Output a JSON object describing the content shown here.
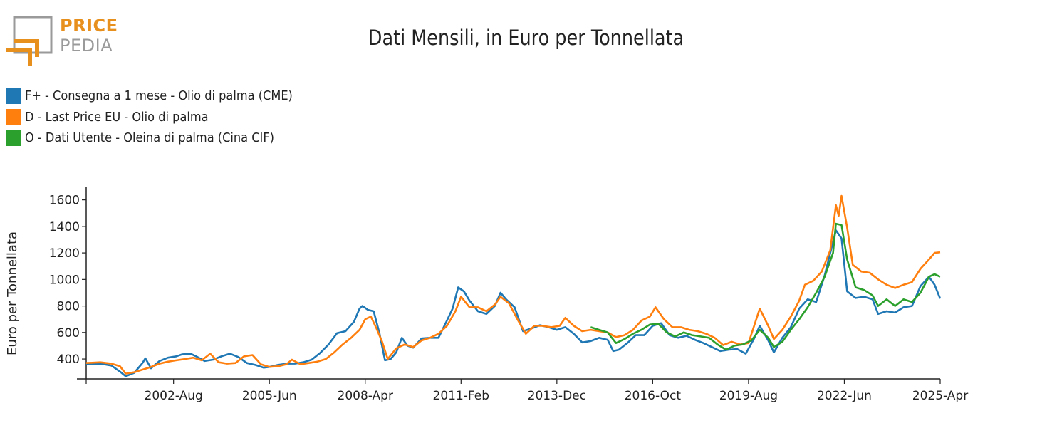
{
  "logo": {
    "line1": "PRICE",
    "line2": "PEDIA"
  },
  "colors": {
    "logo_orange": "#e8901e",
    "logo_gray": "#9a9a9a",
    "axis": "#222222"
  },
  "chart_data": {
    "type": "line",
    "title": "Dati Mensili, in Euro per Tonnellata",
    "ylabel": "Euro per Tonnellata",
    "xlabel": "",
    "x_range": [
      "2000-01",
      "2025-04"
    ],
    "ylim": [
      250,
      1700
    ],
    "yticks": [
      400,
      600,
      800,
      1000,
      1200,
      1400,
      1600
    ],
    "xticks": [
      {
        "label": "2002-Aug",
        "date": "2002-08"
      },
      {
        "label": "2005-Jun",
        "date": "2005-06"
      },
      {
        "label": "2008-Apr",
        "date": "2008-04"
      },
      {
        "label": "2011-Feb",
        "date": "2011-02"
      },
      {
        "label": "2013-Dec",
        "date": "2013-12"
      },
      {
        "label": "2016-Oct",
        "date": "2016-10"
      },
      {
        "label": "2019-Aug",
        "date": "2019-08"
      },
      {
        "label": "2022-Jun",
        "date": "2022-06"
      },
      {
        "label": "2025-Apr",
        "date": "2025-04"
      }
    ],
    "grid": false,
    "legend_position": "top-left",
    "series": [
      {
        "name": "F+ - Consegna a 1 mese - Olio di palma (CME)",
        "color": "#1f77b4",
        "points": [
          [
            "2000-01",
            360
          ],
          [
            "2000-06",
            365
          ],
          [
            "2000-10",
            350
          ],
          [
            "2001-01",
            305
          ],
          [
            "2001-03",
            270
          ],
          [
            "2001-06",
            295
          ],
          [
            "2001-09",
            370
          ],
          [
            "2001-10",
            405
          ],
          [
            "2001-12",
            330
          ],
          [
            "2002-03",
            385
          ],
          [
            "2002-06",
            410
          ],
          [
            "2002-09",
            420
          ],
          [
            "2002-11",
            435
          ],
          [
            "2003-02",
            440
          ],
          [
            "2003-04",
            420
          ],
          [
            "2003-07",
            385
          ],
          [
            "2003-10",
            395
          ],
          [
            "2004-01",
            420
          ],
          [
            "2004-04",
            440
          ],
          [
            "2004-07",
            415
          ],
          [
            "2004-10",
            370
          ],
          [
            "2005-01",
            355
          ],
          [
            "2005-04",
            335
          ],
          [
            "2005-06",
            340
          ],
          [
            "2005-09",
            355
          ],
          [
            "2005-12",
            365
          ],
          [
            "2006-03",
            365
          ],
          [
            "2006-06",
            375
          ],
          [
            "2006-09",
            395
          ],
          [
            "2006-12",
            445
          ],
          [
            "2007-03",
            510
          ],
          [
            "2007-06",
            595
          ],
          [
            "2007-09",
            610
          ],
          [
            "2007-12",
            680
          ],
          [
            "2008-02",
            780
          ],
          [
            "2008-03",
            800
          ],
          [
            "2008-05",
            770
          ],
          [
            "2008-07",
            760
          ],
          [
            "2008-09",
            600
          ],
          [
            "2008-11",
            390
          ],
          [
            "2009-01",
            400
          ],
          [
            "2009-03",
            450
          ],
          [
            "2009-05",
            560
          ],
          [
            "2009-07",
            500
          ],
          [
            "2009-09",
            485
          ],
          [
            "2009-12",
            555
          ],
          [
            "2010-03",
            560
          ],
          [
            "2010-06",
            560
          ],
          [
            "2010-09",
            690
          ],
          [
            "2010-11",
            780
          ],
          [
            "2011-01",
            940
          ],
          [
            "2011-03",
            910
          ],
          [
            "2011-05",
            840
          ],
          [
            "2011-08",
            760
          ],
          [
            "2011-11",
            740
          ],
          [
            "2012-02",
            800
          ],
          [
            "2012-04",
            900
          ],
          [
            "2012-06",
            850
          ],
          [
            "2012-09",
            790
          ],
          [
            "2012-12",
            610
          ],
          [
            "2013-03",
            630
          ],
          [
            "2013-06",
            655
          ],
          [
            "2013-09",
            640
          ],
          [
            "2013-12",
            620
          ],
          [
            "2014-03",
            640
          ],
          [
            "2014-06",
            590
          ],
          [
            "2014-09",
            525
          ],
          [
            "2014-12",
            535
          ],
          [
            "2015-03",
            560
          ],
          [
            "2015-06",
            545
          ],
          [
            "2015-08",
            460
          ],
          [
            "2015-10",
            470
          ],
          [
            "2016-01",
            520
          ],
          [
            "2016-04",
            580
          ],
          [
            "2016-07",
            580
          ],
          [
            "2016-10",
            650
          ],
          [
            "2017-01",
            670
          ],
          [
            "2017-04",
            580
          ],
          [
            "2017-07",
            560
          ],
          [
            "2017-10",
            575
          ],
          [
            "2018-01",
            545
          ],
          [
            "2018-04",
            520
          ],
          [
            "2018-07",
            490
          ],
          [
            "2018-10",
            460
          ],
          [
            "2019-01",
            470
          ],
          [
            "2019-04",
            475
          ],
          [
            "2019-07",
            440
          ],
          [
            "2019-10",
            555
          ],
          [
            "2019-12",
            650
          ],
          [
            "2020-03",
            540
          ],
          [
            "2020-05",
            450
          ],
          [
            "2020-08",
            560
          ],
          [
            "2020-11",
            640
          ],
          [
            "2021-02",
            780
          ],
          [
            "2021-05",
            850
          ],
          [
            "2021-08",
            830
          ],
          [
            "2021-11",
            1030
          ],
          [
            "2022-01",
            1200
          ],
          [
            "2022-03",
            1370
          ],
          [
            "2022-05",
            1310
          ],
          [
            "2022-07",
            910
          ],
          [
            "2022-10",
            860
          ],
          [
            "2023-01",
            870
          ],
          [
            "2023-04",
            850
          ],
          [
            "2023-06",
            740
          ],
          [
            "2023-09",
            760
          ],
          [
            "2023-12",
            750
          ],
          [
            "2024-03",
            790
          ],
          [
            "2024-06",
            800
          ],
          [
            "2024-09",
            950
          ],
          [
            "2024-12",
            1020
          ],
          [
            "2025-02",
            960
          ],
          [
            "2025-04",
            855
          ]
        ]
      },
      {
        "name": "D - Last Price EU - Olio di palma",
        "color": "#ff7f0e",
        "points": [
          [
            "2000-01",
            370
          ],
          [
            "2000-06",
            375
          ],
          [
            "2000-10",
            365
          ],
          [
            "2001-01",
            345
          ],
          [
            "2001-03",
            290
          ],
          [
            "2001-06",
            300
          ],
          [
            "2001-09",
            320
          ],
          [
            "2001-12",
            340
          ],
          [
            "2002-03",
            365
          ],
          [
            "2002-06",
            380
          ],
          [
            "2002-09",
            390
          ],
          [
            "2002-12",
            400
          ],
          [
            "2003-03",
            410
          ],
          [
            "2003-06",
            390
          ],
          [
            "2003-09",
            440
          ],
          [
            "2003-12",
            375
          ],
          [
            "2004-03",
            365
          ],
          [
            "2004-06",
            370
          ],
          [
            "2004-09",
            420
          ],
          [
            "2004-12",
            430
          ],
          [
            "2005-03",
            360
          ],
          [
            "2005-06",
            340
          ],
          [
            "2005-09",
            345
          ],
          [
            "2005-12",
            360
          ],
          [
            "2006-02",
            395
          ],
          [
            "2006-05",
            360
          ],
          [
            "2006-08",
            370
          ],
          [
            "2006-11",
            380
          ],
          [
            "2007-02",
            400
          ],
          [
            "2007-05",
            450
          ],
          [
            "2007-08",
            510
          ],
          [
            "2007-11",
            560
          ],
          [
            "2008-02",
            620
          ],
          [
            "2008-04",
            700
          ],
          [
            "2008-06",
            720
          ],
          [
            "2008-08",
            630
          ],
          [
            "2008-10",
            530
          ],
          [
            "2008-12",
            400
          ],
          [
            "2009-03",
            480
          ],
          [
            "2009-06",
            510
          ],
          [
            "2009-09",
            490
          ],
          [
            "2009-12",
            540
          ],
          [
            "2010-03",
            560
          ],
          [
            "2010-06",
            590
          ],
          [
            "2010-09",
            650
          ],
          [
            "2010-12",
            760
          ],
          [
            "2011-02",
            870
          ],
          [
            "2011-05",
            790
          ],
          [
            "2011-08",
            790
          ],
          [
            "2011-11",
            760
          ],
          [
            "2012-02",
            810
          ],
          [
            "2012-04",
            870
          ],
          [
            "2012-07",
            820
          ],
          [
            "2012-10",
            700
          ],
          [
            "2013-01",
            590
          ],
          [
            "2013-04",
            650
          ],
          [
            "2013-07",
            650
          ],
          [
            "2013-10",
            640
          ],
          [
            "2014-01",
            650
          ],
          [
            "2014-03",
            710
          ],
          [
            "2014-06",
            650
          ],
          [
            "2014-09",
            610
          ],
          [
            "2014-12",
            620
          ],
          [
            "2015-03",
            610
          ],
          [
            "2015-06",
            600
          ],
          [
            "2015-09",
            565
          ],
          [
            "2015-12",
            580
          ],
          [
            "2016-03",
            620
          ],
          [
            "2016-06",
            690
          ],
          [
            "2016-09",
            720
          ],
          [
            "2016-11",
            790
          ],
          [
            "2017-02",
            700
          ],
          [
            "2017-05",
            640
          ],
          [
            "2017-08",
            640
          ],
          [
            "2017-11",
            620
          ],
          [
            "2018-02",
            610
          ],
          [
            "2018-05",
            590
          ],
          [
            "2018-08",
            560
          ],
          [
            "2018-11",
            505
          ],
          [
            "2019-02",
            530
          ],
          [
            "2019-05",
            510
          ],
          [
            "2019-08",
            520
          ],
          [
            "2019-10",
            650
          ],
          [
            "2019-12",
            780
          ],
          [
            "2020-03",
            650
          ],
          [
            "2020-05",
            550
          ],
          [
            "2020-08",
            620
          ],
          [
            "2020-11",
            720
          ],
          [
            "2021-02",
            840
          ],
          [
            "2021-04",
            960
          ],
          [
            "2021-07",
            990
          ],
          [
            "2021-10",
            1060
          ],
          [
            "2022-01",
            1220
          ],
          [
            "2022-03",
            1560
          ],
          [
            "2022-04",
            1480
          ],
          [
            "2022-05",
            1630
          ],
          [
            "2022-07",
            1390
          ],
          [
            "2022-09",
            1110
          ],
          [
            "2022-12",
            1060
          ],
          [
            "2023-03",
            1050
          ],
          [
            "2023-06",
            1000
          ],
          [
            "2023-09",
            960
          ],
          [
            "2023-12",
            935
          ],
          [
            "2024-03",
            960
          ],
          [
            "2024-06",
            980
          ],
          [
            "2024-09",
            1080
          ],
          [
            "2024-12",
            1150
          ],
          [
            "2025-02",
            1200
          ],
          [
            "2025-04",
            1205
          ]
        ]
      },
      {
        "name": "O - Dati Utente - Oleina di palma (Cina CIF)",
        "color": "#2ca02c",
        "points": [
          [
            "2014-12",
            640
          ],
          [
            "2015-03",
            620
          ],
          [
            "2015-06",
            600
          ],
          [
            "2015-09",
            520
          ],
          [
            "2015-12",
            550
          ],
          [
            "2016-03",
            590
          ],
          [
            "2016-06",
            620
          ],
          [
            "2016-09",
            660
          ],
          [
            "2016-12",
            665
          ],
          [
            "2017-03",
            600
          ],
          [
            "2017-06",
            570
          ],
          [
            "2017-09",
            600
          ],
          [
            "2017-12",
            580
          ],
          [
            "2018-03",
            570
          ],
          [
            "2018-06",
            560
          ],
          [
            "2018-09",
            510
          ],
          [
            "2018-12",
            470
          ],
          [
            "2019-03",
            500
          ],
          [
            "2019-06",
            510
          ],
          [
            "2019-09",
            540
          ],
          [
            "2019-12",
            620
          ],
          [
            "2020-03",
            560
          ],
          [
            "2020-05",
            490
          ],
          [
            "2020-08",
            530
          ],
          [
            "2020-11",
            620
          ],
          [
            "2021-02",
            700
          ],
          [
            "2021-05",
            790
          ],
          [
            "2021-08",
            900
          ],
          [
            "2021-11",
            1020
          ],
          [
            "2022-02",
            1200
          ],
          [
            "2022-03",
            1420
          ],
          [
            "2022-05",
            1410
          ],
          [
            "2022-07",
            1150
          ],
          [
            "2022-10",
            940
          ],
          [
            "2023-01",
            920
          ],
          [
            "2023-04",
            880
          ],
          [
            "2023-06",
            800
          ],
          [
            "2023-09",
            850
          ],
          [
            "2023-12",
            800
          ],
          [
            "2024-03",
            850
          ],
          [
            "2024-06",
            830
          ],
          [
            "2024-09",
            900
          ],
          [
            "2024-12",
            1020
          ],
          [
            "2025-02",
            1040
          ],
          [
            "2025-04",
            1020
          ]
        ]
      }
    ]
  }
}
